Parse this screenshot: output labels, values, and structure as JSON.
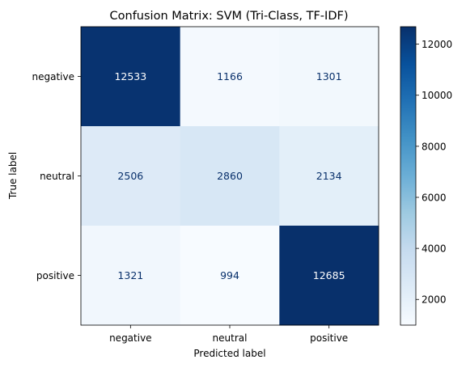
{
  "chart_data": {
    "type": "heatmap",
    "title": "Confusion Matrix: SVM (Tri-Class, TF-IDF)",
    "xlabel": "Predicted label",
    "ylabel": "True label",
    "x_categories": [
      "negative",
      "neutral",
      "positive"
    ],
    "y_categories": [
      "negative",
      "neutral",
      "positive"
    ],
    "values": [
      [
        12533,
        1166,
        1301
      ],
      [
        2506,
        2860,
        2134
      ],
      [
        1321,
        994,
        12685
      ]
    ],
    "colormap": "Blues",
    "colorbar": {
      "range": [
        994,
        12685
      ],
      "ticks": [
        2000,
        4000,
        6000,
        8000,
        10000,
        12000
      ]
    },
    "colors": {
      "cmap_low": "#f7fbff",
      "cmap_high": "#08306b",
      "text_dark": "#08306b",
      "text_light": "#ffffff"
    }
  }
}
